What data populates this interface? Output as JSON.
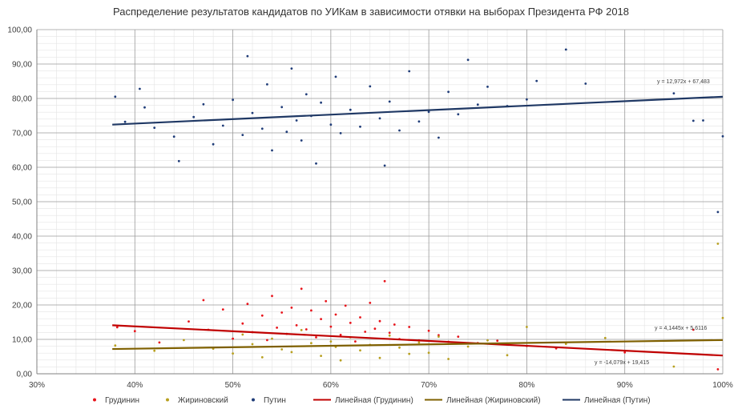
{
  "chart_data": {
    "type": "scatter",
    "title": "Распределение результатов кандидатов по УИКам в зависимости отявки на выборах Президента РФ 2018",
    "xlabel": "",
    "ylabel": "",
    "xlim": [
      0.3,
      1.0
    ],
    "ylim": [
      0,
      100
    ],
    "grid": true,
    "legend_position": "bottom",
    "x_ticks": [
      0.3,
      0.4,
      0.5,
      0.6,
      0.7,
      0.8,
      0.9,
      1.0
    ],
    "x_tick_labels": [
      "30%",
      "40%",
      "50%",
      "60%",
      "70%",
      "80%",
      "90%",
      "100%"
    ],
    "y_ticks": [
      0,
      10,
      20,
      30,
      40,
      50,
      60,
      70,
      80,
      90,
      100
    ],
    "y_tick_labels": [
      "0,00",
      "10,00",
      "20,00",
      "30,00",
      "40,00",
      "50,00",
      "60,00",
      "70,00",
      "80,00",
      "90,00",
      "100,00"
    ],
    "series": [
      {
        "name": "Грудинин",
        "color": "#e8141b",
        "marker": "circle",
        "points": [
          [
            0.382,
            13.5
          ],
          [
            0.4,
            12.4
          ],
          [
            0.425,
            9.1
          ],
          [
            0.455,
            15.2
          ],
          [
            0.47,
            21.4
          ],
          [
            0.475,
            12.8
          ],
          [
            0.49,
            18.7
          ],
          [
            0.5,
            10.2
          ],
          [
            0.51,
            14.6
          ],
          [
            0.515,
            20.3
          ],
          [
            0.52,
            12.1
          ],
          [
            0.53,
            16.9
          ],
          [
            0.535,
            9.8
          ],
          [
            0.54,
            22.6
          ],
          [
            0.545,
            13.4
          ],
          [
            0.55,
            17.8
          ],
          [
            0.555,
            11.6
          ],
          [
            0.56,
            19.2
          ],
          [
            0.565,
            14.1
          ],
          [
            0.57,
            24.7
          ],
          [
            0.575,
            12.9
          ],
          [
            0.58,
            18.4
          ],
          [
            0.585,
            10.6
          ],
          [
            0.59,
            15.9
          ],
          [
            0.595,
            21.1
          ],
          [
            0.6,
            13.7
          ],
          [
            0.605,
            17.2
          ],
          [
            0.61,
            11.3
          ],
          [
            0.615,
            19.8
          ],
          [
            0.62,
            14.8
          ],
          [
            0.625,
            9.4
          ],
          [
            0.63,
            16.4
          ],
          [
            0.635,
            12.2
          ],
          [
            0.64,
            20.6
          ],
          [
            0.645,
            13.1
          ],
          [
            0.65,
            15.3
          ],
          [
            0.655,
            26.9
          ],
          [
            0.66,
            11.9
          ],
          [
            0.665,
            14.3
          ],
          [
            0.67,
            10.1
          ],
          [
            0.68,
            13.6
          ],
          [
            0.69,
            9.7
          ],
          [
            0.7,
            12.5
          ],
          [
            0.71,
            11.2
          ],
          [
            0.72,
            9.3
          ],
          [
            0.73,
            10.8
          ],
          [
            0.75,
            8.9
          ],
          [
            0.77,
            9.6
          ],
          [
            0.8,
            8.1
          ],
          [
            0.83,
            7.4
          ],
          [
            0.9,
            6.2
          ],
          [
            0.97,
            12.8
          ],
          [
            0.995,
            1.3
          ]
        ]
      },
      {
        "name": "Жириновский",
        "color": "#b8a020",
        "marker": "circle",
        "points": [
          [
            0.38,
            8.2
          ],
          [
            0.42,
            6.7
          ],
          [
            0.45,
            9.8
          ],
          [
            0.48,
            7.3
          ],
          [
            0.5,
            5.9
          ],
          [
            0.51,
            11.4
          ],
          [
            0.52,
            8.6
          ],
          [
            0.53,
            4.8
          ],
          [
            0.54,
            10.2
          ],
          [
            0.55,
            7.1
          ],
          [
            0.56,
            6.3
          ],
          [
            0.57,
            12.7
          ],
          [
            0.58,
            8.9
          ],
          [
            0.59,
            5.2
          ],
          [
            0.6,
            9.4
          ],
          [
            0.605,
            7.8
          ],
          [
            0.61,
            3.9
          ],
          [
            0.62,
            10.6
          ],
          [
            0.63,
            6.8
          ],
          [
            0.64,
            8.4
          ],
          [
            0.65,
            4.6
          ],
          [
            0.66,
            11.1
          ],
          [
            0.67,
            7.6
          ],
          [
            0.68,
            5.8
          ],
          [
            0.69,
            9.1
          ],
          [
            0.7,
            6.1
          ],
          [
            0.71,
            10.8
          ],
          [
            0.72,
            4.3
          ],
          [
            0.74,
            7.9
          ],
          [
            0.76,
            9.7
          ],
          [
            0.78,
            5.4
          ],
          [
            0.8,
            13.6
          ],
          [
            0.84,
            8.7
          ],
          [
            0.88,
            10.4
          ],
          [
            0.95,
            2.1
          ],
          [
            0.995,
            37.8
          ],
          [
            1.0,
            16.2
          ]
        ]
      },
      {
        "name": "Путин",
        "color": "#1f3c78",
        "marker": "circle",
        "points": [
          [
            0.38,
            80.5
          ],
          [
            0.39,
            73.2
          ],
          [
            0.405,
            82.8
          ],
          [
            0.41,
            77.4
          ],
          [
            0.42,
            71.5
          ],
          [
            0.44,
            68.9
          ],
          [
            0.445,
            61.8
          ],
          [
            0.46,
            74.6
          ],
          [
            0.47,
            78.3
          ],
          [
            0.48,
            66.7
          ],
          [
            0.49,
            72.1
          ],
          [
            0.5,
            79.6
          ],
          [
            0.51,
            69.4
          ],
          [
            0.515,
            92.3
          ],
          [
            0.52,
            75.8
          ],
          [
            0.53,
            71.2
          ],
          [
            0.535,
            84.1
          ],
          [
            0.54,
            64.9
          ],
          [
            0.55,
            77.5
          ],
          [
            0.555,
            70.3
          ],
          [
            0.56,
            88.7
          ],
          [
            0.565,
            73.6
          ],
          [
            0.57,
            67.8
          ],
          [
            0.575,
            81.2
          ],
          [
            0.58,
            74.9
          ],
          [
            0.585,
            61.1
          ],
          [
            0.59,
            78.8
          ],
          [
            0.6,
            72.4
          ],
          [
            0.605,
            86.3
          ],
          [
            0.61,
            69.9
          ],
          [
            0.62,
            76.7
          ],
          [
            0.63,
            71.8
          ],
          [
            0.64,
            83.5
          ],
          [
            0.65,
            74.2
          ],
          [
            0.655,
            60.5
          ],
          [
            0.66,
            79.1
          ],
          [
            0.67,
            70.7
          ],
          [
            0.68,
            87.9
          ],
          [
            0.69,
            73.3
          ],
          [
            0.7,
            76.1
          ],
          [
            0.71,
            68.6
          ],
          [
            0.72,
            81.9
          ],
          [
            0.73,
            75.4
          ],
          [
            0.74,
            91.2
          ],
          [
            0.75,
            78.2
          ],
          [
            0.76,
            83.4
          ],
          [
            0.78,
            77.8
          ],
          [
            0.8,
            79.7
          ],
          [
            0.81,
            85.1
          ],
          [
            0.84,
            94.2
          ],
          [
            0.86,
            84.3
          ],
          [
            0.95,
            81.5
          ],
          [
            0.97,
            73.5
          ],
          [
            0.98,
            73.6
          ],
          [
            0.995,
            47.0
          ],
          [
            1.0,
            69.0
          ]
        ]
      }
    ],
    "trendlines": [
      {
        "name": "Линейная (Грудинин)",
        "color": "#c00000",
        "x": [
          0.377,
          1.0
        ],
        "y": [
          14.1,
          5.3
        ],
        "equation": "y = -14,079x + 19,415"
      },
      {
        "name": "Линейная (Жириновский)",
        "color": "#7f6000",
        "x": [
          0.377,
          1.0
        ],
        "y": [
          7.2,
          9.8
        ],
        "equation": "y = 4,1445x + 5,6116"
      },
      {
        "name": "Линейная (Путин)",
        "color": "#1f3864",
        "x": [
          0.377,
          1.0
        ],
        "y": [
          72.4,
          80.5
        ],
        "equation": "y = 12,972x + 67,483"
      }
    ]
  }
}
